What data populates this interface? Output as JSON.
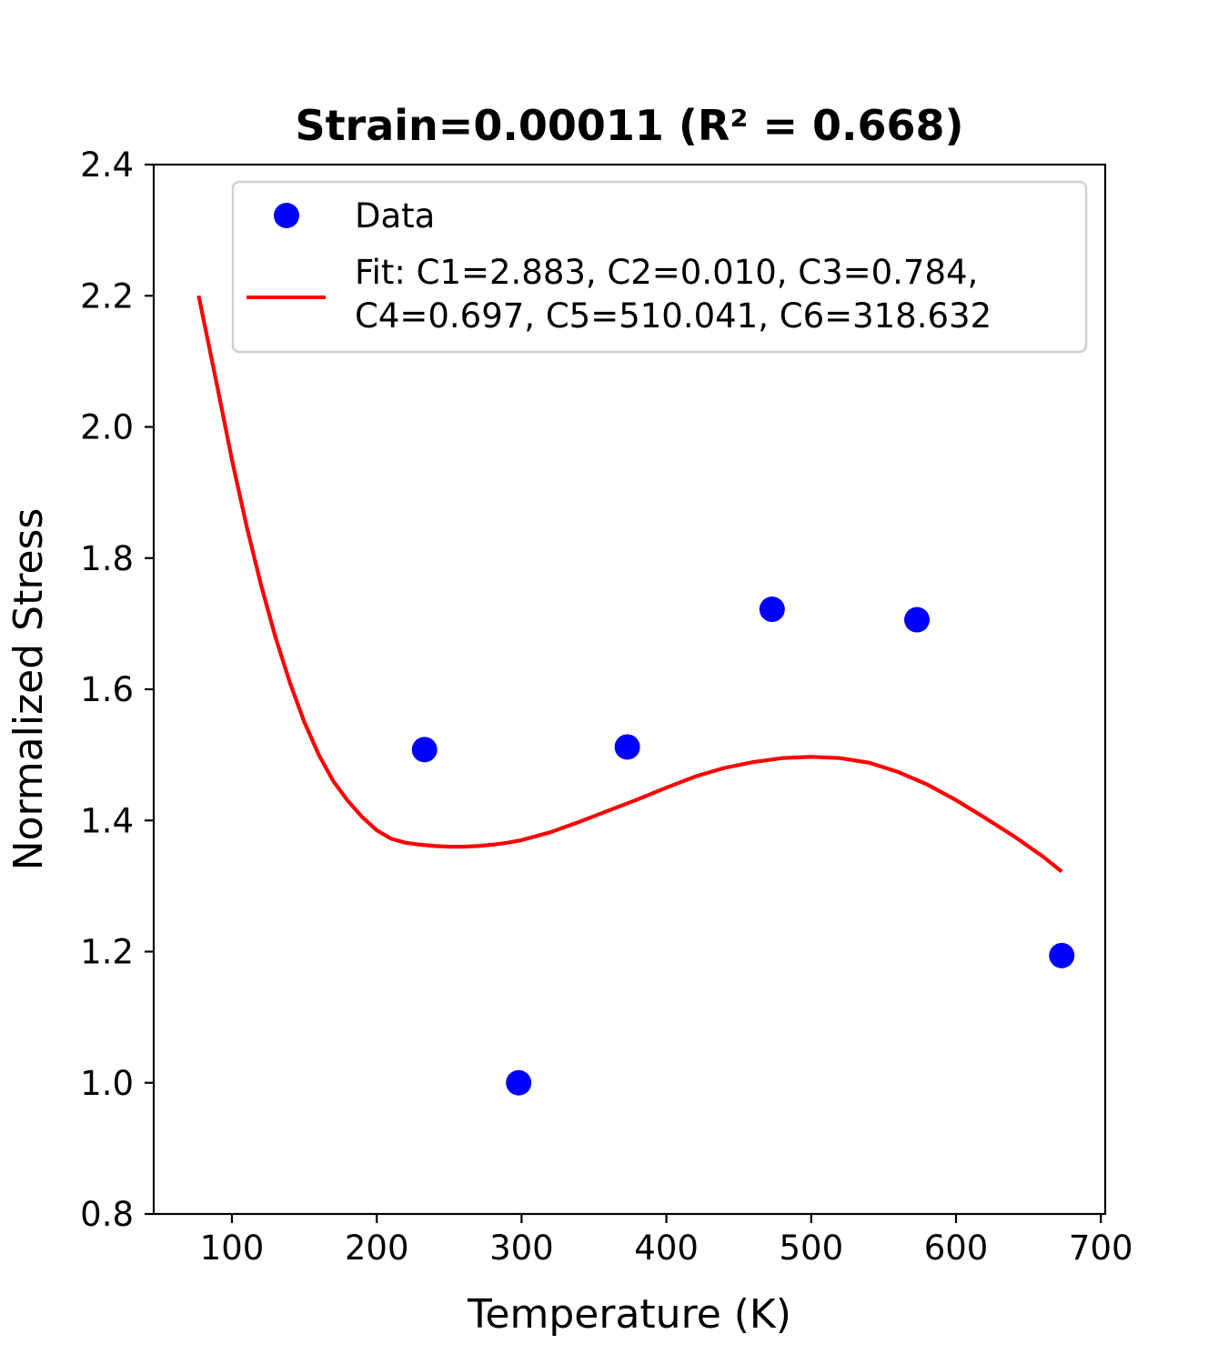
{
  "chart_data": {
    "type": "scatter",
    "title": "Strain=0.00011 (R² = 0.668)",
    "xlabel": "Temperature (K)",
    "ylabel": "Normalized Stress",
    "xlim": [
      46,
      703
    ],
    "ylim": [
      0.8,
      2.4
    ],
    "x_ticks": [
      100,
      200,
      300,
      400,
      500,
      600,
      700
    ],
    "y_ticks": [
      0.8,
      1.0,
      1.2,
      1.4,
      1.6,
      1.8,
      2.0,
      2.2,
      2.4
    ],
    "x_tick_labels": [
      "100",
      "200",
      "300",
      "400",
      "500",
      "600",
      "700"
    ],
    "y_tick_labels": [
      "0.8",
      "1.0",
      "1.2",
      "1.4",
      "1.6",
      "1.8",
      "2.0",
      "2.2",
      "2.4"
    ],
    "grid": false,
    "legend_position": "top-right",
    "series": [
      {
        "name": "Data",
        "kind": "points",
        "color": "#0000ff",
        "x": [
          233,
          298,
          373,
          473,
          573,
          673
        ],
        "y": [
          1.508,
          1.0,
          1.512,
          1.722,
          1.706,
          1.194
        ]
      },
      {
        "name": "Fit: C1=2.883, C2=0.010, C3=0.784, C4=0.697, C5=510.041, C6=318.632",
        "legend_lines": [
          "Fit: C1=2.883, C2=0.010, C3=0.784,",
          "C4=0.697, C5=510.041, C6=318.632"
        ],
        "kind": "line",
        "color": "#ff0000",
        "x": [
          77,
          90,
          100,
          110,
          120,
          130,
          140,
          150,
          160,
          170,
          180,
          190,
          200,
          210,
          220,
          230,
          240,
          250,
          260,
          270,
          280,
          290,
          300,
          320,
          340,
          360,
          380,
          400,
          420,
          440,
          460,
          480,
          500,
          520,
          540,
          560,
          580,
          600,
          620,
          640,
          660,
          673
        ],
        "y": [
          2.2,
          2.06,
          1.95,
          1.85,
          1.76,
          1.68,
          1.61,
          1.55,
          1.5,
          1.46,
          1.43,
          1.405,
          1.385,
          1.372,
          1.366,
          1.363,
          1.361,
          1.36,
          1.36,
          1.361,
          1.363,
          1.366,
          1.37,
          1.382,
          1.398,
          1.415,
          1.432,
          1.45,
          1.467,
          1.48,
          1.489,
          1.495,
          1.497,
          1.495,
          1.488,
          1.474,
          1.455,
          1.431,
          1.404,
          1.376,
          1.345,
          1.322
        ]
      }
    ]
  }
}
